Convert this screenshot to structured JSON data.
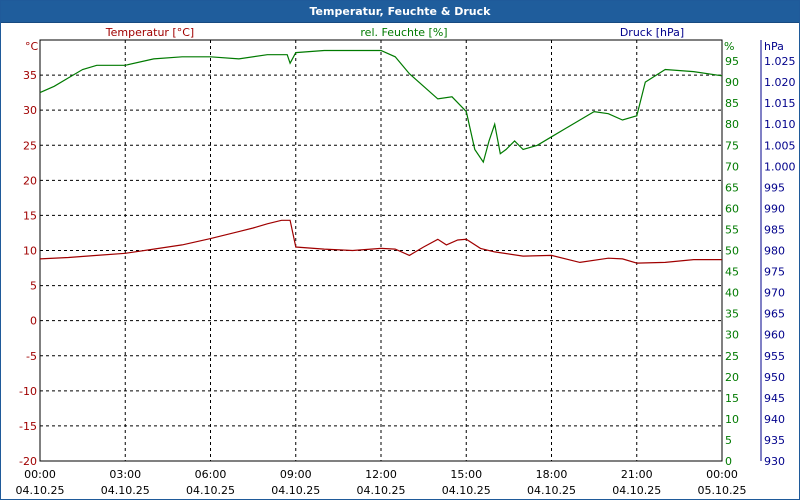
{
  "window": {
    "title": "Temperatur, Feuchte & Druck"
  },
  "colors": {
    "temperature": "#a00000",
    "humidity": "#007a00",
    "pressure": "#00008b",
    "titlebar": "#1f5d9c",
    "grid": "#000000"
  },
  "chart_data": {
    "type": "line",
    "title": "Temperatur, Feuchte & Druck",
    "grid": true,
    "x_ticks": [
      {
        "time": "00:00",
        "date": "04.10.25"
      },
      {
        "time": "03:00",
        "date": "04.10.25"
      },
      {
        "time": "06:00",
        "date": "04.10.25"
      },
      {
        "time": "09:00",
        "date": "04.10.25"
      },
      {
        "time": "12:00",
        "date": "04.10.25"
      },
      {
        "time": "15:00",
        "date": "04.10.25"
      },
      {
        "time": "18:00",
        "date": "04.10.25"
      },
      {
        "time": "21:00",
        "date": "04.10.25"
      },
      {
        "time": "00:00",
        "date": "05.10.25"
      }
    ],
    "x_range_hours": [
      0,
      24
    ],
    "axes": {
      "temperature": {
        "label": "Temperatur [°C]",
        "unit": "°C",
        "ylim": [
          -20,
          40
        ],
        "ticks": [
          "-20",
          "-15",
          "-10",
          "-5",
          "0",
          "5",
          "10",
          "15",
          "20",
          "25",
          "30",
          "35"
        ]
      },
      "humidity": {
        "label": "rel. Feuchte [%]",
        "unit": "%",
        "ylim": [
          0,
          100
        ],
        "ticks": [
          "0",
          "5",
          "10",
          "15",
          "20",
          "25",
          "30",
          "35",
          "40",
          "45",
          "50",
          "55",
          "60",
          "65",
          "70",
          "75",
          "80",
          "85",
          "90",
          "95"
        ]
      },
      "pressure": {
        "label": "Druck [hPa]",
        "unit": "hPa",
        "ylim": [
          930,
          1030
        ],
        "ticks": [
          "930",
          "935",
          "940",
          "945",
          "950",
          "955",
          "960",
          "965",
          "970",
          "975",
          "980",
          "985",
          "990",
          "995",
          "1.000",
          "1.005",
          "1.010",
          "1.015",
          "1.020",
          "1.025"
        ]
      }
    },
    "series": [
      {
        "name": "Temperatur [°C]",
        "axis": "temperature",
        "color": "#a00000",
        "x": [
          0,
          1,
          2,
          3,
          4,
          5,
          6,
          7,
          7.5,
          8,
          8.5,
          8.8,
          9,
          10,
          11,
          12,
          12.5,
          13,
          13.5,
          14,
          14.3,
          14.7,
          15,
          15.5,
          16,
          17,
          18,
          19,
          20,
          20.5,
          21,
          22,
          23,
          24
        ],
        "y": [
          8.8,
          9,
          9.3,
          9.6,
          10.2,
          10.8,
          11.7,
          12.7,
          13.2,
          13.8,
          14.3,
          14.3,
          10.5,
          10.2,
          10.0,
          10.3,
          10.2,
          9.3,
          10.5,
          11.6,
          10.8,
          11.5,
          11.6,
          10.3,
          9.8,
          9.2,
          9.3,
          8.3,
          8.9,
          8.8,
          8.2,
          8.3,
          8.7,
          8.7
        ]
      },
      {
        "name": "rel. Feuchte [%]",
        "axis": "humidity",
        "color": "#007a00",
        "x": [
          0,
          0.5,
          1,
          1.5,
          2,
          3,
          4,
          5,
          6,
          7,
          8,
          8.7,
          8.8,
          9,
          10,
          11,
          12,
          12.5,
          13,
          13.5,
          14,
          14.5,
          15,
          15.3,
          15.6,
          15.8,
          16,
          16.2,
          16.4,
          16.7,
          17,
          17.5,
          18,
          18.5,
          19,
          19.5,
          20,
          20.5,
          21,
          21.3,
          22,
          23,
          24
        ],
        "y": [
          87.5,
          89,
          91,
          93,
          94,
          94,
          95.5,
          96,
          96,
          95.5,
          96.5,
          96.5,
          94.5,
          97,
          97.5,
          97.5,
          97.5,
          96,
          92,
          89,
          86,
          86.5,
          83,
          74,
          71,
          76,
          80,
          73,
          74,
          76,
          74,
          75,
          77,
          79,
          81,
          83,
          82.5,
          81,
          82,
          90,
          93,
          92.5,
          91.5
        ]
      }
    ]
  }
}
